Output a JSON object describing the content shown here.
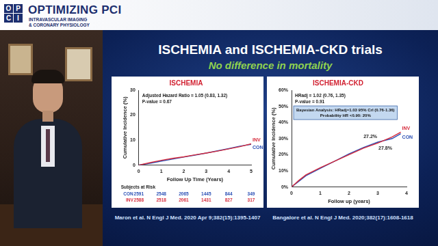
{
  "header": {
    "logo_letters": [
      "O",
      "P",
      "C",
      "I"
    ],
    "title": "OPTIMIZING PCI",
    "subtitle_lines": [
      "INTRAVASCULAR IMAGING",
      "& CORONARY PHYSIOLOGY"
    ]
  },
  "slide": {
    "title": "ISCHEMIA and ISCHEMIA-CKD trials",
    "subtitle": "No difference in mortality",
    "references": [
      "Maron et al. N Engl J Med. 2020 Apr 9;382(15):1395-1407",
      "Bangalore et al. N Engl J Med. 2020;382(17):1608-1618"
    ]
  },
  "chart_data": [
    {
      "type": "line",
      "title": "ISCHEMIA",
      "x_label": "Follow Up Time (Years)",
      "y_label": "Cumulative Incidence (%)",
      "x": [
        0,
        0.5,
        1,
        1.5,
        2,
        2.5,
        3,
        3.5,
        4,
        4.5,
        5
      ],
      "series": [
        {
          "name": "INV",
          "color": "#d62b3c",
          "values": [
            0,
            1.0,
            1.9,
            2.7,
            3.3,
            4.1,
            4.8,
            5.6,
            6.5,
            7.4,
            8.5
          ]
        },
        {
          "name": "CON",
          "color": "#2a4fb5",
          "values": [
            0,
            0.7,
            1.6,
            2.4,
            3.2,
            4.0,
            4.8,
            5.7,
            6.6,
            7.6,
            8.3
          ]
        }
      ],
      "xlim": [
        0,
        5
      ],
      "xticks": [
        0,
        1,
        2,
        3,
        4,
        5
      ],
      "ylim": [
        0,
        30
      ],
      "yticks": [
        0,
        10,
        20,
        30
      ],
      "grid": false,
      "annotations": [
        "Adjusted Hazard Ratio = 1.05 (0.83, 1.32)",
        "P-value = 0.67"
      ],
      "risk_table": {
        "title": "Subjects at Risk",
        "rows": [
          {
            "name": "CON",
            "color": "#2a4fb5",
            "values": [
              2591,
              2548,
              2065,
              1445,
              844,
              349
            ]
          },
          {
            "name": "INV",
            "color": "#d62b3c",
            "values": [
              2588,
              2518,
              2061,
              1431,
              827,
              317
            ]
          }
        ]
      }
    },
    {
      "type": "line",
      "title": "ISCHEMIA-CKD",
      "x_label": "Follow up (years)",
      "y_label": "Cumulative Incidence (%)",
      "x": [
        0,
        0.25,
        0.5,
        1,
        1.5,
        2,
        2.5,
        3,
        3.5,
        3.8
      ],
      "series": [
        {
          "name": "INV",
          "color": "#d62b3c",
          "values": [
            0,
            4,
            7.5,
            12,
            16,
            20,
            24,
            27.2,
            31,
            34
          ]
        },
        {
          "name": "CON",
          "color": "#2a4fb5",
          "values": [
            0,
            3.5,
            7,
            11.5,
            16,
            20.5,
            24.5,
            27.8,
            30,
            33
          ]
        }
      ],
      "xlim": [
        0,
        4
      ],
      "xticks": [
        0,
        1,
        2,
        3,
        4
      ],
      "ylim": [
        0,
        60
      ],
      "yticks": [
        {
          "value": 0,
          "label": "0%"
        },
        {
          "value": 10,
          "label": "10%"
        },
        {
          "value": 20,
          "label": "20%"
        },
        {
          "value": 30,
          "label": "30%"
        },
        {
          "value": 40,
          "label": "40%"
        },
        {
          "value": 50,
          "label": "50%"
        },
        {
          "value": 60,
          "label": "60%"
        }
      ],
      "grid": false,
      "annotations": [
        "HRadj = 1.02 (0.76, 1.35)",
        "P-value = 0.91"
      ],
      "boxed_annotations": [
        "Bayesian Analysis: HRadj=1.03 95% CrI (0.76-1.36)",
        "Probability HR <0.90: 20%"
      ],
      "point_labels": [
        {
          "text": "27.2%",
          "x": 3,
          "y": 27.2
        },
        {
          "text": "27.8%",
          "x": 3,
          "y": 27.8
        }
      ]
    }
  ]
}
